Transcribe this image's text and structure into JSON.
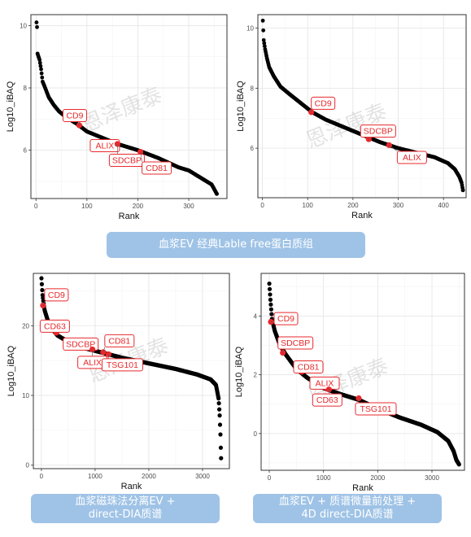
{
  "chart_data": [
    {
      "type": "scatter",
      "xlabel": "Rank",
      "ylabel": "Log10_iBAQ",
      "xlim": [
        -10,
        375
      ],
      "ylim": [
        4.45,
        10.35
      ],
      "xticks": [
        0,
        100,
        200,
        300
      ],
      "yticks": [
        6,
        8,
        10
      ],
      "grid": true,
      "curve": [
        [
          1,
          10.1
        ],
        [
          2,
          9.95
        ],
        [
          3,
          9.1
        ],
        [
          5,
          9.0
        ],
        [
          7,
          8.9
        ],
        [
          10,
          8.6
        ],
        [
          13,
          8.2
        ],
        [
          18,
          8.0
        ],
        [
          25,
          7.7
        ],
        [
          35,
          7.45
        ],
        [
          45,
          7.25
        ],
        [
          60,
          7.05
        ],
        [
          80,
          6.85
        ],
        [
          100,
          6.6
        ],
        [
          130,
          6.4
        ],
        [
          160,
          6.2
        ],
        [
          200,
          6.0
        ],
        [
          240,
          5.75
        ],
        [
          280,
          5.45
        ],
        [
          300,
          5.35
        ],
        [
          320,
          5.15
        ],
        [
          335,
          5.0
        ],
        [
          345,
          4.9
        ],
        [
          350,
          4.75
        ],
        [
          355,
          4.6
        ]
      ],
      "highlights": [
        {
          "label": "CD9",
          "x": 85,
          "y": 6.8
        },
        {
          "label": "ALIX",
          "x": 148,
          "y": 6.25
        },
        {
          "label": "SDCBP",
          "x": 160,
          "y": 6.2
        },
        {
          "label": "CD81",
          "x": 205,
          "y": 5.95
        }
      ]
    },
    {
      "type": "scatter",
      "xlabel": "Rank",
      "ylabel": "Log10_iBAQ",
      "xlim": [
        -10,
        450
      ],
      "ylim": [
        4.35,
        10.45
      ],
      "xticks": [
        0,
        100,
        200,
        300,
        400
      ],
      "yticks": [
        6,
        8,
        10
      ],
      "grid": true,
      "curve": [
        [
          1,
          10.25
        ],
        [
          3,
          9.6
        ],
        [
          6,
          9.3
        ],
        [
          10,
          9.0
        ],
        [
          15,
          8.7
        ],
        [
          25,
          8.4
        ],
        [
          40,
          8.05
        ],
        [
          60,
          7.8
        ],
        [
          85,
          7.5
        ],
        [
          110,
          7.2
        ],
        [
          140,
          6.95
        ],
        [
          180,
          6.7
        ],
        [
          220,
          6.45
        ],
        [
          260,
          6.2
        ],
        [
          300,
          6.0
        ],
        [
          340,
          5.85
        ],
        [
          380,
          5.7
        ],
        [
          410,
          5.5
        ],
        [
          425,
          5.3
        ],
        [
          435,
          5.05
        ],
        [
          440,
          4.85
        ],
        [
          443,
          4.6
        ]
      ],
      "highlights": [
        {
          "label": "CD9",
          "x": 108,
          "y": 7.2
        },
        {
          "label": "SDCBP",
          "x": 235,
          "y": 6.3
        },
        {
          "label": "ALIX",
          "x": 280,
          "y": 6.1
        }
      ]
    },
    {
      "type": "scatter",
      "xlabel": "Rank",
      "ylabel": "Log10_iBAQ",
      "xlim": [
        -150,
        3500
      ],
      "ylim": [
        -0.5,
        27.5
      ],
      "xticks": [
        0,
        1000,
        2000,
        3000
      ],
      "yticks": [
        0,
        10,
        20
      ],
      "grid": true,
      "curve": [
        [
          1,
          26.8
        ],
        [
          20,
          24.5
        ],
        [
          60,
          22.2
        ],
        [
          150,
          20.0
        ],
        [
          300,
          18.6
        ],
        [
          500,
          17.7
        ],
        [
          800,
          16.8
        ],
        [
          1100,
          16.2
        ],
        [
          1500,
          15.4
        ],
        [
          2000,
          14.6
        ],
        [
          2500,
          13.8
        ],
        [
          2900,
          13.0
        ],
        [
          3150,
          12.3
        ],
        [
          3250,
          11.5
        ],
        [
          3300,
          9.5
        ],
        [
          3320,
          7.0
        ],
        [
          3335,
          4.0
        ],
        [
          3345,
          1.0
        ]
      ],
      "highlights": [
        {
          "label": "CD9",
          "x": 30,
          "y": 22.9
        },
        {
          "label": "CD63",
          "x": 280,
          "y": 19.0
        },
        {
          "label": "SDCBP",
          "x": 860,
          "y": 16.9
        },
        {
          "label": "ALIX",
          "x": 950,
          "y": 16.6
        },
        {
          "label": "CD81",
          "x": 1150,
          "y": 16.2
        },
        {
          "label": "TSG101",
          "x": 1250,
          "y": 15.9
        }
      ]
    },
    {
      "type": "scatter",
      "xlabel": "Rank",
      "ylabel": "Log10_iBAQ",
      "xlim": [
        -150,
        3600
      ],
      "ylim": [
        -1.25,
        5.45
      ],
      "xticks": [
        0,
        1000,
        2000,
        3000
      ],
      "yticks": [
        0,
        2,
        4
      ],
      "grid": true,
      "curve": [
        [
          1,
          5.1
        ],
        [
          20,
          4.6
        ],
        [
          50,
          3.9
        ],
        [
          100,
          3.5
        ],
        [
          200,
          3.0
        ],
        [
          300,
          2.7
        ],
        [
          500,
          2.2
        ],
        [
          700,
          1.9
        ],
        [
          1000,
          1.55
        ],
        [
          1300,
          1.35
        ],
        [
          1650,
          1.15
        ],
        [
          2000,
          0.85
        ],
        [
          2400,
          0.55
        ],
        [
          2800,
          0.3
        ],
        [
          3100,
          0.05
        ],
        [
          3300,
          -0.25
        ],
        [
          3400,
          -0.6
        ],
        [
          3450,
          -0.9
        ],
        [
          3500,
          -1.05
        ]
      ],
      "highlights": [
        {
          "label": "CD9",
          "x": 30,
          "y": 3.8
        },
        {
          "label": "SDCBP",
          "x": 250,
          "y": 2.75
        },
        {
          "label": "CD81",
          "x": 600,
          "y": 2.1
        },
        {
          "label": "ALIX",
          "x": 1050,
          "y": 1.55
        },
        {
          "label": "CD63",
          "x": 1100,
          "y": 1.5
        },
        {
          "label": "TSG101",
          "x": 1650,
          "y": 1.2
        }
      ]
    }
  ],
  "watermark": "恩泽康泰",
  "colors": {
    "point": "#000000",
    "highlight": "#e8292c",
    "label_border": "#e8292c",
    "banner": "#9fc3e6"
  },
  "banners": [
    {
      "text": "血浆EV 经典Lable free蛋白质组"
    },
    {
      "text": "血浆磁珠法分离EV +\ndirect-DIA质谱"
    },
    {
      "text": "血浆EV + 质谱微量前处理 +\n4D direct-DIA质谱"
    }
  ]
}
